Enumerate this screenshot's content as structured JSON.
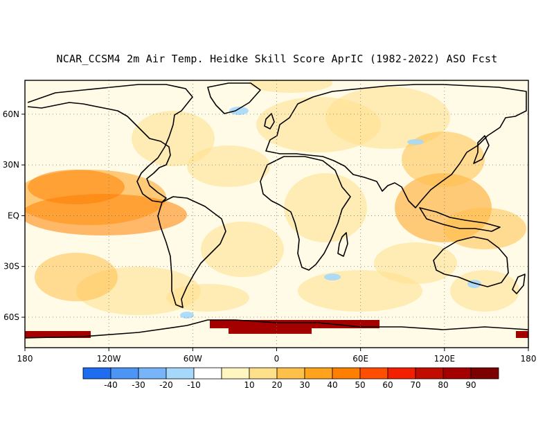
{
  "map": {
    "title": "NCAR_CCSM4 2m Air Temp. Heidke Skill Score AprIC (1982-2022) ASO Fcst",
    "lon_range": [
      -180,
      180
    ],
    "lat_range": [
      -78,
      80
    ],
    "lon_ticks": [
      {
        "lon": -180,
        "label": "180"
      },
      {
        "lon": -120,
        "label": "120W"
      },
      {
        "lon": -60,
        "label": "60W"
      },
      {
        "lon": 0,
        "label": "0"
      },
      {
        "lon": 60,
        "label": "60E"
      },
      {
        "lon": 120,
        "label": "120E"
      },
      {
        "lon": 180,
        "label": "180"
      }
    ],
    "lat_ticks": [
      {
        "lat": 60,
        "label": "60N"
      },
      {
        "lat": 30,
        "label": "30N"
      },
      {
        "lat": 0,
        "label": "EQ"
      },
      {
        "lat": -30,
        "label": "30S"
      },
      {
        "lat": -60,
        "label": "60S"
      }
    ],
    "grid": "dotted"
  },
  "colorbar": {
    "colors": [
      "#1e6cf0",
      "#4c95f5",
      "#78b4f8",
      "#a5d8fb",
      "#ffffff",
      "#fff5c0",
      "#ffe08a",
      "#ffc04a",
      "#ffa31c",
      "#ff7f00",
      "#ff4e00",
      "#f22000",
      "#c20c00",
      "#a40000",
      "#7c0000"
    ],
    "labels": [
      "-40",
      "-30",
      "-20",
      "-10",
      "10",
      "20",
      "30",
      "40",
      "50",
      "60",
      "70",
      "80",
      "90"
    ]
  }
}
